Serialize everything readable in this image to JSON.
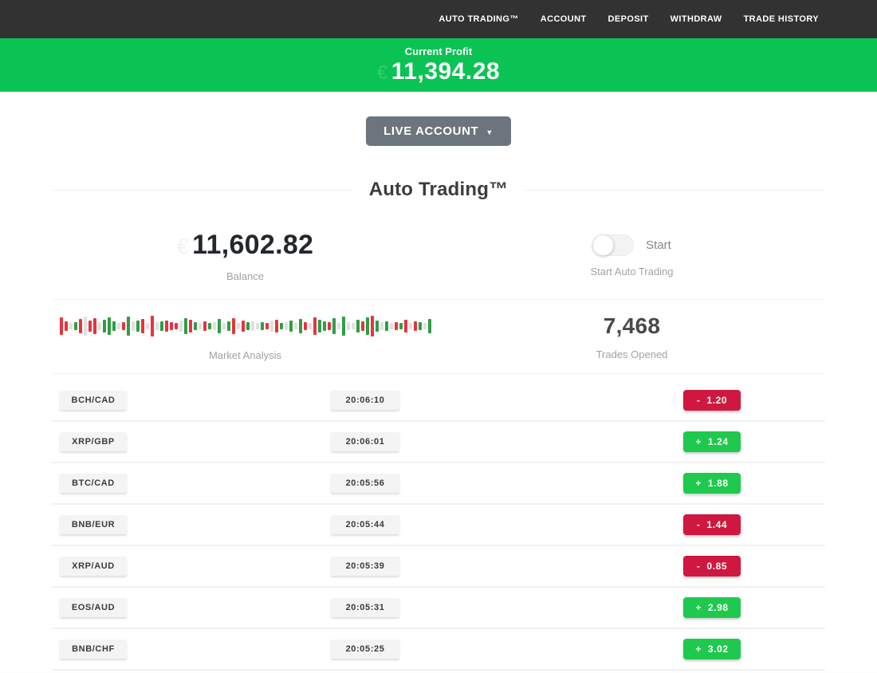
{
  "nav": {
    "items": [
      {
        "label": "AUTO TRADING™"
      },
      {
        "label": "ACCOUNT"
      },
      {
        "label": "DEPOSIT"
      },
      {
        "label": "WITHDRAW"
      },
      {
        "label": "TRADE HISTORY"
      }
    ]
  },
  "profit_banner": {
    "label": "Current Profit",
    "currency_symbol": "€",
    "value": "11,394.28"
  },
  "account_selector": {
    "label": "LIVE ACCOUNT"
  },
  "section": {
    "title": "Auto Trading™"
  },
  "stats": {
    "balance": {
      "currency_symbol": "€",
      "value": "11,602.82",
      "label": "Balance"
    },
    "auto_trading": {
      "toggle_label": "Start",
      "label": "Start Auto Trading",
      "toggle_state": "off"
    },
    "market_analysis": {
      "label": "Market Analysis",
      "bars": [
        [
          "r",
          22
        ],
        [
          "r",
          12
        ],
        [
          "n",
          8
        ],
        [
          "g",
          10
        ],
        [
          "r",
          18
        ],
        [
          "n",
          24
        ],
        [
          "r",
          14
        ],
        [
          "r",
          20
        ],
        [
          "n",
          10
        ],
        [
          "g",
          16
        ],
        [
          "g",
          22
        ],
        [
          "g",
          12
        ],
        [
          "n",
          8
        ],
        [
          "r",
          10
        ],
        [
          "g",
          24
        ],
        [
          "n",
          12
        ],
        [
          "g",
          14
        ],
        [
          "r",
          18
        ],
        [
          "n",
          8
        ],
        [
          "r",
          26
        ],
        [
          "n",
          10
        ],
        [
          "g",
          12
        ],
        [
          "r",
          14
        ],
        [
          "r",
          10
        ],
        [
          "r",
          8
        ],
        [
          "n",
          14
        ],
        [
          "g",
          20
        ],
        [
          "r",
          16
        ],
        [
          "g",
          10
        ],
        [
          "n",
          8
        ],
        [
          "r",
          12
        ],
        [
          "g",
          8
        ],
        [
          "n",
          10
        ],
        [
          "g",
          18
        ],
        [
          "n",
          8
        ],
        [
          "g",
          12
        ],
        [
          "r",
          20
        ],
        [
          "n",
          8
        ],
        [
          "r",
          14
        ],
        [
          "g",
          10
        ],
        [
          "n",
          12
        ],
        [
          "n",
          8
        ],
        [
          "g",
          10
        ],
        [
          "r",
          8
        ],
        [
          "n",
          14
        ],
        [
          "r",
          16
        ],
        [
          "g",
          8
        ],
        [
          "n",
          10
        ],
        [
          "g",
          14
        ],
        [
          "n",
          8
        ],
        [
          "g",
          18
        ],
        [
          "r",
          10
        ],
        [
          "n",
          8
        ],
        [
          "r",
          22
        ],
        [
          "g",
          16
        ],
        [
          "g",
          12
        ],
        [
          "r",
          10
        ],
        [
          "g",
          20
        ],
        [
          "n",
          8
        ],
        [
          "g",
          24
        ],
        [
          "n",
          10
        ],
        [
          "n",
          8
        ],
        [
          "g",
          16
        ],
        [
          "r",
          12
        ],
        [
          "g",
          22
        ],
        [
          "r",
          26
        ],
        [
          "g",
          14
        ],
        [
          "n",
          10
        ],
        [
          "g",
          12
        ],
        [
          "n",
          8
        ],
        [
          "r",
          10
        ],
        [
          "g",
          8
        ],
        [
          "r",
          16
        ],
        [
          "n",
          8
        ],
        [
          "r",
          12
        ],
        [
          "g",
          10
        ],
        [
          "n",
          8
        ],
        [
          "g",
          18
        ]
      ]
    },
    "trades_opened": {
      "value": "7,468",
      "label": "Trades Opened"
    }
  },
  "trades": {
    "rows": [
      {
        "pair": "BCH/CAD",
        "time": "20:06:10",
        "result_sign": "-",
        "result_value": "1.20",
        "direction": "loss"
      },
      {
        "pair": "XRP/GBP",
        "time": "20:06:01",
        "result_sign": "+",
        "result_value": "1.24",
        "direction": "gain"
      },
      {
        "pair": "BTC/CAD",
        "time": "20:05:56",
        "result_sign": "+",
        "result_value": "1.88",
        "direction": "gain"
      },
      {
        "pair": "BNB/EUR",
        "time": "20:05:44",
        "result_sign": "-",
        "result_value": "1.44",
        "direction": "loss"
      },
      {
        "pair": "XRP/AUD",
        "time": "20:05:39",
        "result_sign": "-",
        "result_value": "0.85",
        "direction": "loss"
      },
      {
        "pair": "EOS/AUD",
        "time": "20:05:31",
        "result_sign": "+",
        "result_value": "2.98",
        "direction": "gain"
      },
      {
        "pair": "BNB/CHF",
        "time": "20:05:25",
        "result_sign": "+",
        "result_value": "3.02",
        "direction": "gain"
      }
    ]
  },
  "colors": {
    "nav_dark": "#323232",
    "banner_green": "#0bc254",
    "button_gray": "#6c757d",
    "gain": "#1fc94d",
    "loss": "#d0173f",
    "bar_green": "#2f9e44",
    "bar_red": "#e8333f",
    "bar_gray": "#e0e0e0"
  }
}
